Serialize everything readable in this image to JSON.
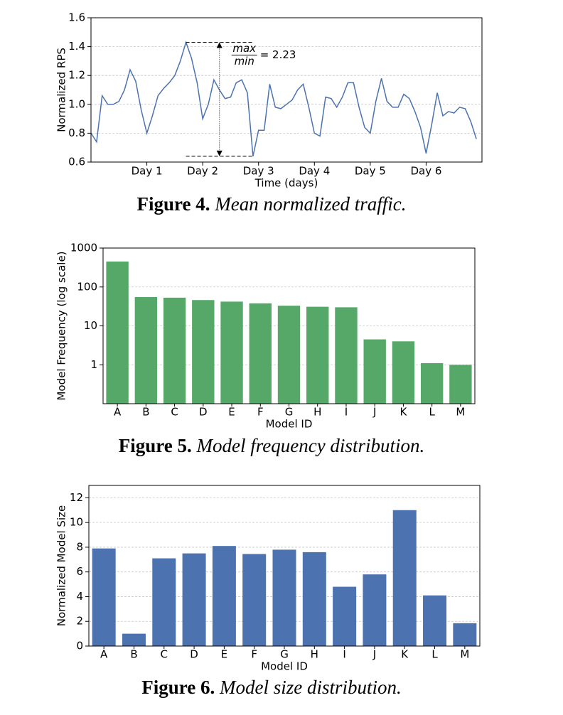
{
  "chart_data": [
    {
      "type": "line",
      "xlabel": "Time (days)",
      "ylabel": "Normalized RPS",
      "caption_label": "Figure 4.",
      "caption_text": "Mean normalized traffic.",
      "x": [
        0,
        0.1,
        0.2,
        0.3,
        0.4,
        0.5,
        0.6,
        0.7,
        0.8,
        0.9,
        1.0,
        1.1,
        1.2,
        1.3,
        1.4,
        1.5,
        1.6,
        1.7,
        1.8,
        1.9,
        2.0,
        2.1,
        2.2,
        2.3,
        2.4,
        2.5,
        2.6,
        2.7,
        2.8,
        2.9,
        3.0,
        3.1,
        3.2,
        3.3,
        3.4,
        3.5,
        3.6,
        3.7,
        3.8,
        3.9,
        4.0,
        4.1,
        4.2,
        4.3,
        4.4,
        4.5,
        4.6,
        4.7,
        4.8,
        4.9,
        5.0,
        5.1,
        5.2,
        5.3,
        5.4,
        5.5,
        5.6,
        5.7,
        5.8,
        5.9,
        6.0,
        6.1,
        6.2,
        6.3,
        6.4,
        6.5,
        6.6,
        6.7,
        6.8,
        6.9
      ],
      "values": [
        0.8,
        0.74,
        1.06,
        1.0,
        1.0,
        1.02,
        1.1,
        1.24,
        1.16,
        0.96,
        0.8,
        0.92,
        1.06,
        1.11,
        1.15,
        1.2,
        1.3,
        1.43,
        1.32,
        1.15,
        0.9,
        1.0,
        1.17,
        1.1,
        1.04,
        1.05,
        1.15,
        1.17,
        1.08,
        0.64,
        0.82,
        0.82,
        1.14,
        0.98,
        0.97,
        1.0,
        1.03,
        1.1,
        1.14,
        0.98,
        0.8,
        0.78,
        1.05,
        1.04,
        0.98,
        1.05,
        1.15,
        1.15,
        0.98,
        0.84,
        0.8,
        1.02,
        1.18,
        1.02,
        0.98,
        0.98,
        1.07,
        1.04,
        0.95,
        0.84,
        0.66,
        0.86,
        1.08,
        0.92,
        0.95,
        0.94,
        0.98,
        0.97,
        0.88,
        0.76
      ],
      "color": "#4c72b0",
      "xlim": [
        0,
        7
      ],
      "xticks": [
        {
          "value": 1,
          "label": "Day 1"
        },
        {
          "value": 2,
          "label": "Day 2"
        },
        {
          "value": 3,
          "label": "Day 3"
        },
        {
          "value": 4,
          "label": "Day 4"
        },
        {
          "value": 5,
          "label": "Day 5"
        },
        {
          "value": 6,
          "label": "Day 6"
        }
      ],
      "ylim": [
        0.6,
        1.6
      ],
      "yticks": [
        0.6,
        0.8,
        {
          "value": 1,
          "label": "1.0"
        },
        1.2,
        1.4,
        1.6
      ],
      "grid": true,
      "annotation": {
        "numerator": "max",
        "denominator": "min",
        "text": "= 2.23"
      }
    },
    {
      "type": "bar",
      "xlabel": "Model ID",
      "ylabel": "Model Frequency (log scale)",
      "caption_label": "Figure 5.",
      "caption_text": "Model frequency distribution.",
      "categories": [
        "A",
        "B",
        "C",
        "D",
        "E",
        "F",
        "G",
        "H",
        "I",
        "J",
        "K",
        "L",
        "M"
      ],
      "values": [
        450,
        55,
        53,
        46,
        42,
        38,
        33,
        31,
        30,
        4.5,
        4,
        1.1,
        1.0
      ],
      "color": "#55a868",
      "log_scale": true,
      "ylim": [
        0.1,
        1000
      ],
      "yticks": [
        1,
        10,
        100,
        1000
      ],
      "grid": true
    },
    {
      "type": "bar",
      "xlabel": "Model ID",
      "ylabel": "Normalized Model Size",
      "caption_label": "Figure 6.",
      "caption_text": "Model size distribution.",
      "categories": [
        "A",
        "B",
        "C",
        "D",
        "E",
        "F",
        "G",
        "H",
        "I",
        "J",
        "K",
        "L",
        "M"
      ],
      "values": [
        7.9,
        1.0,
        7.1,
        7.5,
        8.1,
        7.45,
        7.8,
        7.6,
        4.8,
        5.8,
        11.0,
        4.1,
        1.85
      ],
      "color": "#4c72b0",
      "ylim": [
        0,
        13
      ],
      "yticks": [
        0,
        2,
        4,
        6,
        8,
        10,
        12
      ],
      "grid": true
    }
  ]
}
